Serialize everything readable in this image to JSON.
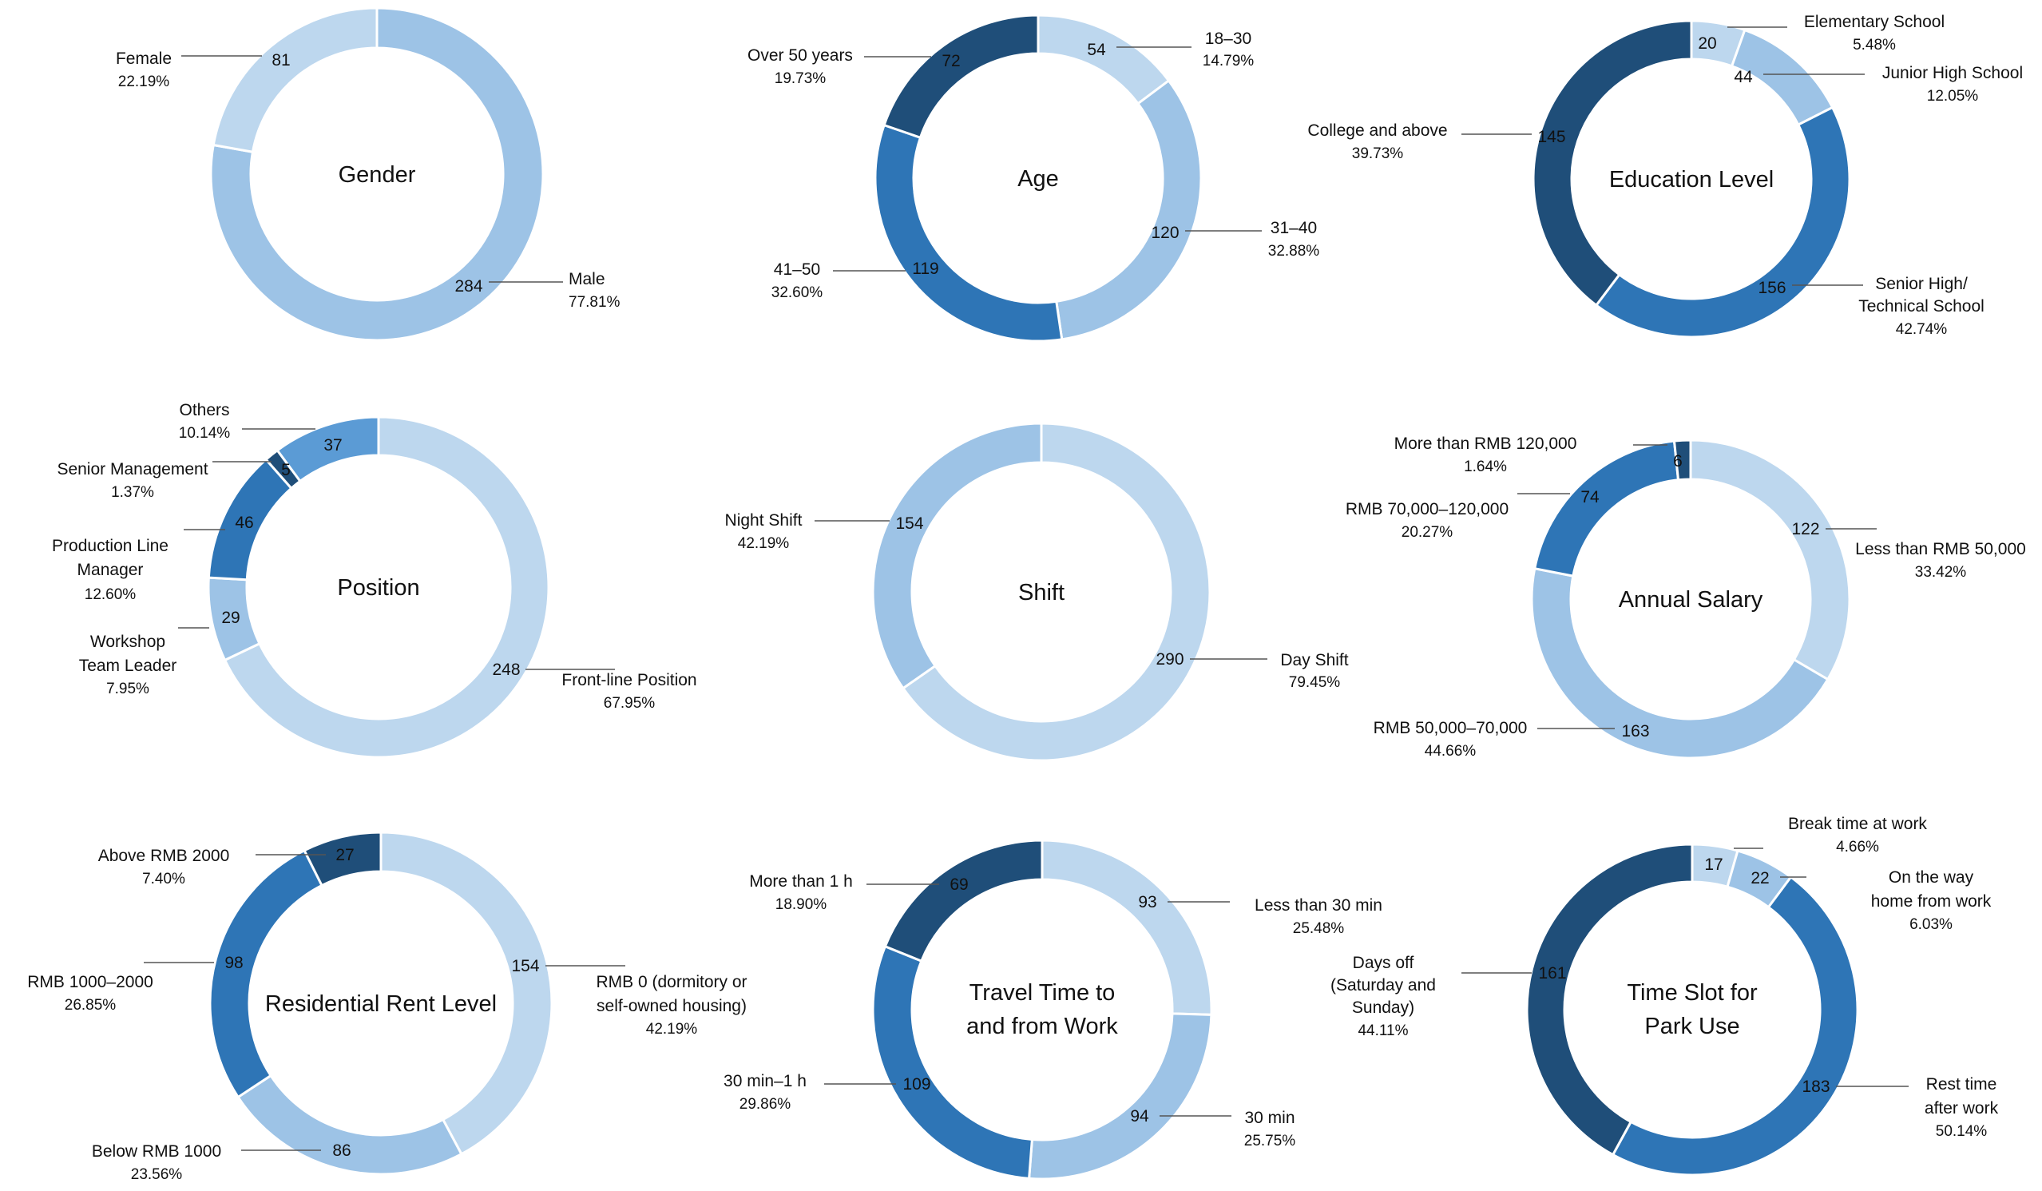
{
  "colors": {
    "c1": "#bdd7ee",
    "c2": "#9dc3e6",
    "c3": "#5b9bd5",
    "c4": "#2e75b6",
    "c5": "#1f4e79",
    "leader": "#555555",
    "text": "#111111"
  },
  "chart_data": [
    {
      "type": "pie",
      "title": "Gender",
      "slices": [
        {
          "label": "Male",
          "value": 284,
          "percent": "77.81%",
          "color": "c2"
        },
        {
          "label": "Female",
          "value": 81,
          "percent": "22.19%",
          "color": "c1"
        }
      ]
    },
    {
      "type": "pie",
      "title": "Age",
      "slices": [
        {
          "label": "18–30",
          "value": 54,
          "percent": "14.79%",
          "color": "c1"
        },
        {
          "label": "31–40",
          "value": 120,
          "percent": "32.88%",
          "color": "c2"
        },
        {
          "label": "41–50",
          "value": 119,
          "percent": "32.60%",
          "color": "c4"
        },
        {
          "label": "Over 50 years",
          "value": 72,
          "percent": "19.73%",
          "color": "c5"
        }
      ]
    },
    {
      "type": "pie",
      "title": "Education Level",
      "slices": [
        {
          "label": "Elementary School",
          "value": 20,
          "percent": "5.48%",
          "color": "c1"
        },
        {
          "label": "Junior High School",
          "value": 44,
          "percent": "12.05%",
          "color": "c2"
        },
        {
          "label": "Senior High/ Technical School",
          "value": 156,
          "percent": "42.74%",
          "color": "c4"
        },
        {
          "label": "College and above",
          "value": 145,
          "percent": "39.73%",
          "color": "c5"
        }
      ]
    },
    {
      "type": "pie",
      "title": "Position",
      "slices": [
        {
          "label": "Front-line Position",
          "value": 248,
          "percent": "67.95%",
          "color": "c1"
        },
        {
          "label": "Workshop Team Leader",
          "value": 29,
          "percent": "7.95%",
          "color": "c2"
        },
        {
          "label": "Production Line Manager",
          "value": 46,
          "percent": "12.60%",
          "color": "c4"
        },
        {
          "label": "Senior Management",
          "value": 5,
          "percent": "1.37%",
          "color": "c5"
        },
        {
          "label": "Others",
          "value": 37,
          "percent": "10.14%",
          "color": "c3"
        }
      ]
    },
    {
      "type": "pie",
      "title": "Shift",
      "slices": [
        {
          "label": "Day Shift",
          "value": 290,
          "percent": "79.45%",
          "color": "c1"
        },
        {
          "label": "Night Shift",
          "value": 154,
          "percent": "42.19%",
          "color": "c2"
        }
      ]
    },
    {
      "type": "pie",
      "title": "Annual Salary",
      "slices": [
        {
          "label": "Less than RMB 50,000",
          "value": 122,
          "percent": "33.42%",
          "color": "c1"
        },
        {
          "label": "RMB 50,000–70,000",
          "value": 163,
          "percent": "44.66%",
          "color": "c2"
        },
        {
          "label": "RMB 70,000–120,000",
          "value": 74,
          "percent": "20.27%",
          "color": "c4"
        },
        {
          "label": "More than RMB 120,000",
          "value": 6,
          "percent": "1.64%",
          "color": "c5"
        }
      ]
    },
    {
      "type": "pie",
      "title": "Residential Rent Level",
      "slices": [
        {
          "label": "RMB 0 (dormitory or self-owned housing)",
          "value": 154,
          "percent": "42.19%",
          "color": "c1"
        },
        {
          "label": "Below RMB 1000",
          "value": 86,
          "percent": "23.56%",
          "color": "c2"
        },
        {
          "label": "RMB 1000–2000",
          "value": 98,
          "percent": "26.85%",
          "color": "c4"
        },
        {
          "label": "Above RMB 2000",
          "value": 27,
          "percent": "7.40%",
          "color": "c5"
        }
      ]
    },
    {
      "type": "pie",
      "title": "Travel Time to and from Work",
      "slices": [
        {
          "label": "Less than 30 min",
          "value": 93,
          "percent": "25.48%",
          "color": "c1"
        },
        {
          "label": "30 min",
          "value": 94,
          "percent": "25.75%",
          "color": "c2"
        },
        {
          "label": "30 min–1 h",
          "value": 109,
          "percent": "29.86%",
          "color": "c4"
        },
        {
          "label": "More than 1 h",
          "value": 69,
          "percent": "18.90%",
          "color": "c5"
        }
      ]
    },
    {
      "type": "pie",
      "title": "Time Slot for Park Use",
      "slices": [
        {
          "label": "Break time at work",
          "value": 17,
          "percent": "4.66%",
          "color": "c1"
        },
        {
          "label": "On the way home from work",
          "value": 22,
          "percent": "6.03%",
          "color": "c2"
        },
        {
          "label": "Rest time after work",
          "value": 183,
          "percent": "50.14%",
          "color": "c4"
        },
        {
          "label": "Days off (Saturday and Sunday)",
          "value": 161,
          "percent": "44.11%",
          "color": "c5"
        }
      ]
    }
  ]
}
